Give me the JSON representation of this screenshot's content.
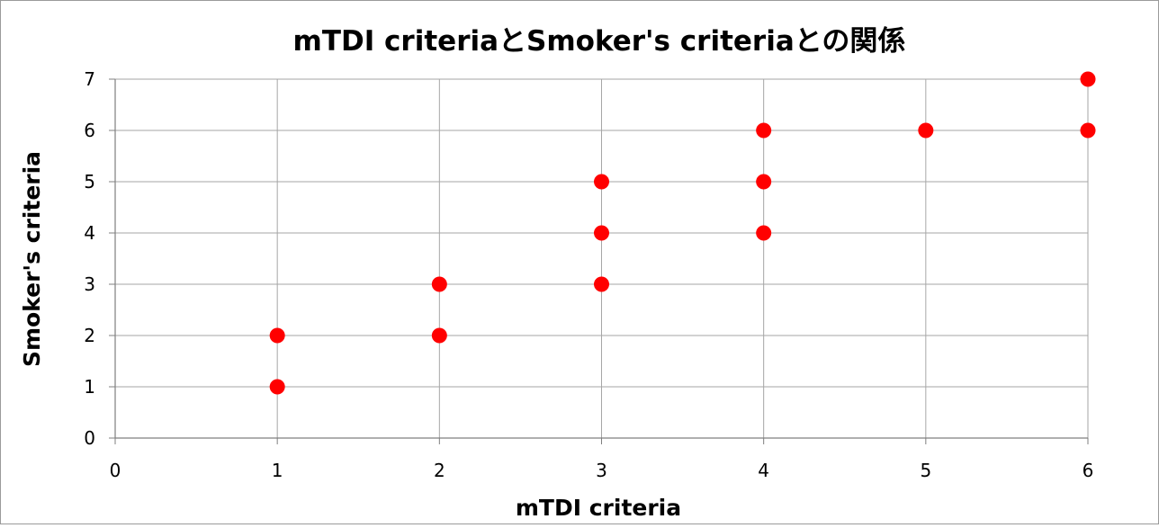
{
  "chart_data": {
    "type": "scatter",
    "title": "mTDI criteriaとSmoker's criteriaとの関係",
    "xlabel": "mTDI criteria",
    "ylabel": "Smoker's criteria",
    "xlim": [
      0,
      6
    ],
    "ylim": [
      0,
      7
    ],
    "x_ticks": [
      0,
      1,
      2,
      3,
      4,
      5,
      6
    ],
    "y_ticks": [
      0,
      1,
      2,
      3,
      4,
      5,
      6,
      7
    ],
    "grid": true,
    "legend": "none",
    "marker_color": "#ff0000",
    "series": [
      {
        "points": [
          [
            1,
            1
          ],
          [
            1,
            2
          ],
          [
            2,
            2
          ],
          [
            2,
            3
          ],
          [
            3,
            3
          ],
          [
            3,
            4
          ],
          [
            3,
            5
          ],
          [
            4,
            4
          ],
          [
            4,
            5
          ],
          [
            4,
            6
          ],
          [
            5,
            6
          ],
          [
            6,
            6
          ],
          [
            6,
            7
          ]
        ]
      }
    ]
  }
}
